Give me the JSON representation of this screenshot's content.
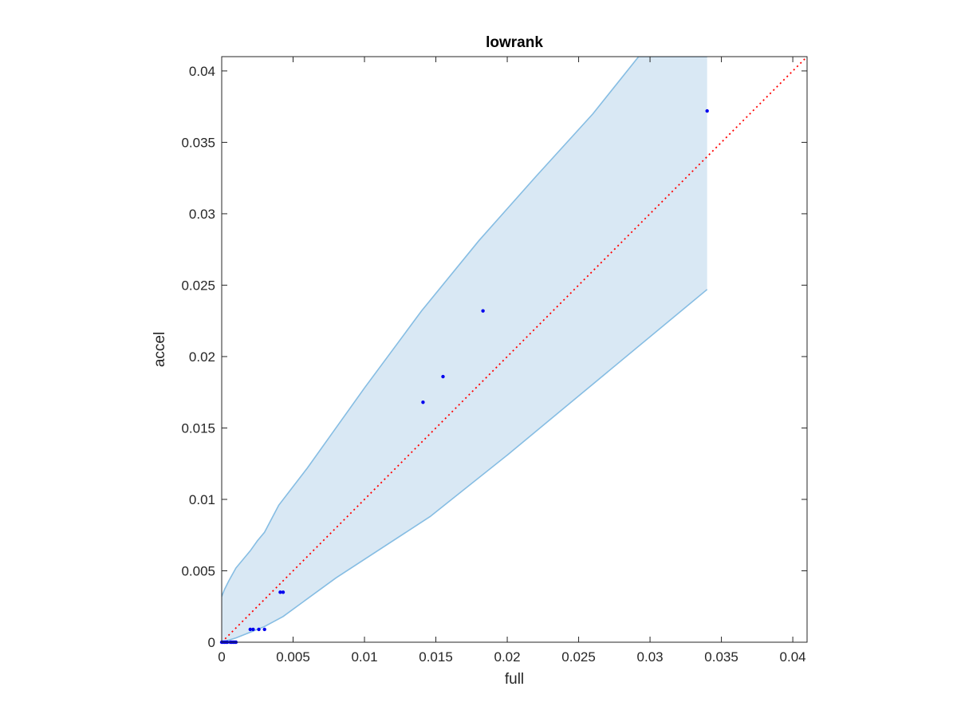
{
  "chart_data": {
    "type": "scatter",
    "title": "lowrank",
    "xlabel": "full",
    "ylabel": "accel",
    "xlim": [
      0,
      0.041
    ],
    "ylim": [
      0,
      0.041
    ],
    "xticks": [
      0,
      0.005,
      0.01,
      0.015,
      0.02,
      0.025,
      0.03,
      0.035,
      0.04
    ],
    "xtick_labels": [
      "0",
      "0.005",
      "0.01",
      "0.015",
      "0.02",
      "0.025",
      "0.03",
      "0.035",
      "0.04"
    ],
    "yticks": [
      0,
      0.005,
      0.01,
      0.015,
      0.02,
      0.025,
      0.03,
      0.035,
      0.04
    ],
    "ytick_labels": [
      "0",
      "0.005",
      "0.01",
      "0.015",
      "0.02",
      "0.025",
      "0.03",
      "0.035",
      "0.04"
    ],
    "grid": false,
    "points": {
      "x": [
        0.0,
        0.0001,
        0.0002,
        0.0003,
        0.0004,
        0.0006,
        0.0007,
        0.0008,
        0.0009,
        0.001,
        0.002,
        0.0022,
        0.0026,
        0.003,
        0.0041,
        0.0043,
        0.0141,
        0.0155,
        0.0183,
        0.034
      ],
      "y": [
        0.0,
        0.0,
        0.0,
        0.0,
        0.0,
        0.0,
        0.0,
        0.0,
        0.0,
        0.0,
        0.0009,
        0.0009,
        0.0009,
        0.0009,
        0.0035,
        0.0035,
        0.0168,
        0.0186,
        0.0232,
        0.0372
      ]
    },
    "band_upper": {
      "x": [
        0,
        0.0002,
        0.0005,
        0.001,
        0.002,
        0.0025,
        0.003,
        0.004,
        0.006,
        0.008,
        0.01,
        0.014,
        0.018,
        0.022,
        0.026,
        0.0292,
        0.034
      ],
      "y": [
        0.0032,
        0.0037,
        0.0043,
        0.0052,
        0.0064,
        0.0071,
        0.0077,
        0.0096,
        0.0122,
        0.015,
        0.0178,
        0.0232,
        0.0281,
        0.0326,
        0.037,
        0.041,
        0.041
      ]
    },
    "band_lower": {
      "x": [
        0,
        0.001,
        0.002,
        0.003,
        0.0043,
        0.008,
        0.0146,
        0.02,
        0.034
      ],
      "y": [
        0.0,
        0.0003,
        0.0007,
        0.0011,
        0.0018,
        0.0045,
        0.0088,
        0.0131,
        0.0247
      ]
    },
    "reference_line": {
      "x": [
        0,
        0.041
      ],
      "y": [
        0,
        0.041
      ]
    },
    "colors": {
      "band_fill": "#d9e8f4",
      "band_edge": "#86bde3",
      "points": "#0000ee",
      "reference_line": "#ff0000",
      "axes": "#262626"
    }
  }
}
